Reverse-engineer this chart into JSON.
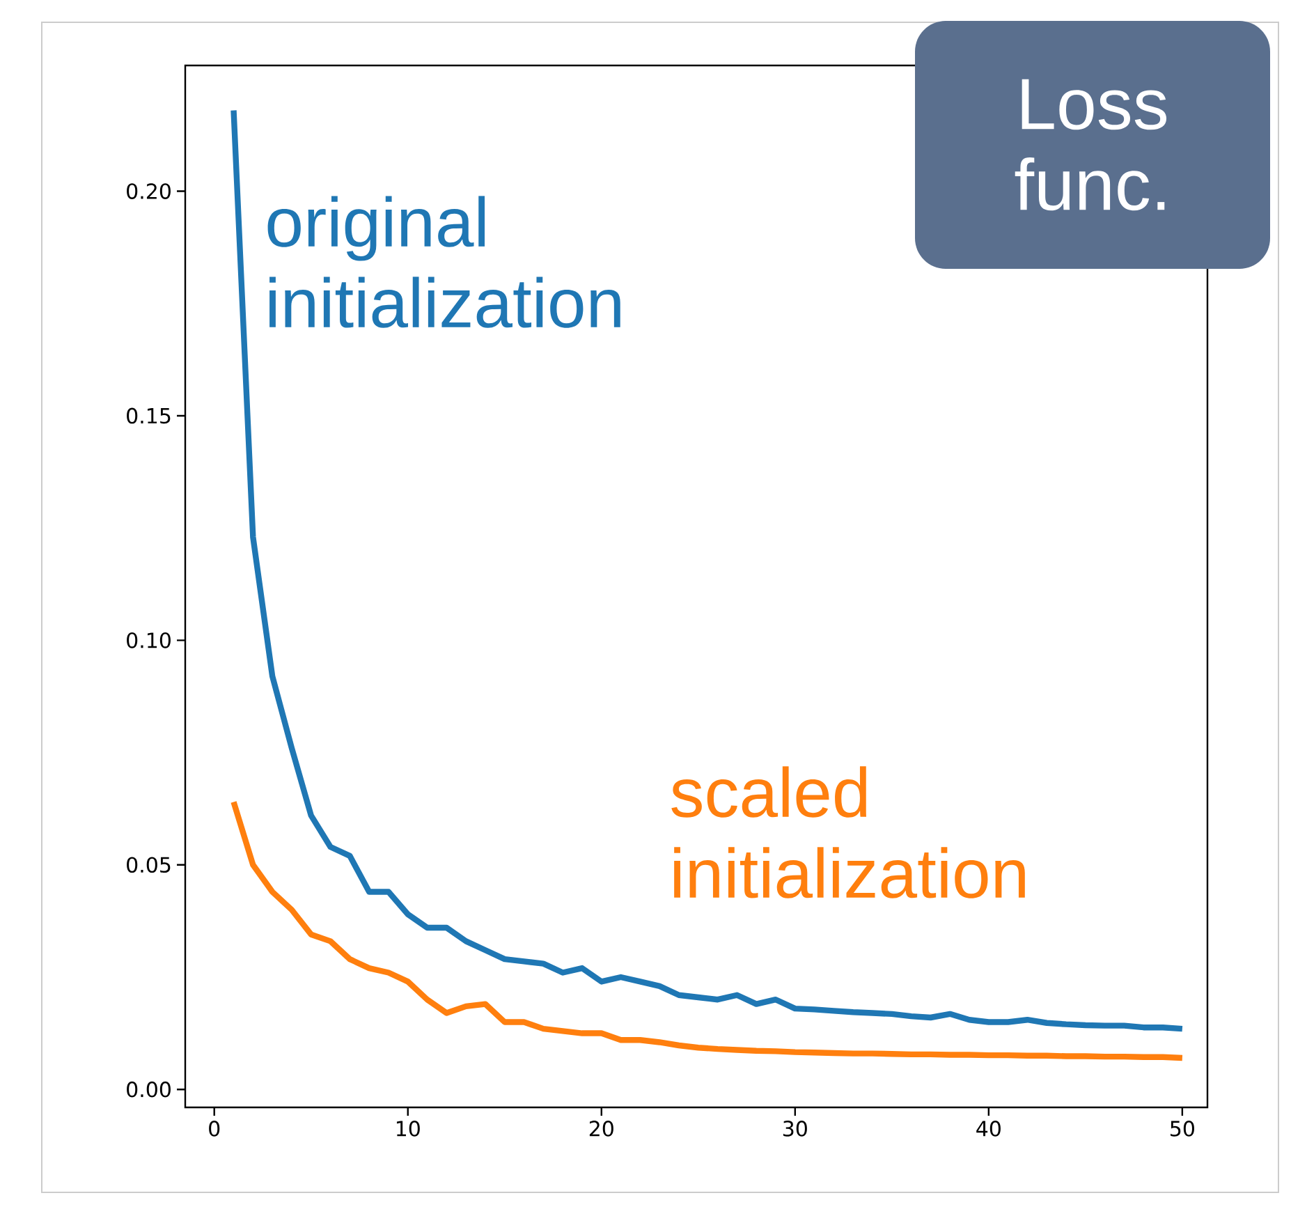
{
  "chart_data": {
    "type": "line",
    "title": "Loss func.",
    "x": [
      1,
      2,
      3,
      4,
      5,
      6,
      7,
      8,
      9,
      10,
      11,
      12,
      13,
      14,
      15,
      16,
      17,
      18,
      19,
      20,
      21,
      22,
      23,
      24,
      25,
      26,
      27,
      28,
      29,
      30,
      31,
      32,
      33,
      34,
      35,
      36,
      37,
      38,
      39,
      40,
      41,
      42,
      43,
      44,
      45,
      46,
      47,
      48,
      49,
      50
    ],
    "series": [
      {
        "name": "original initialization",
        "color": "#1f77b4",
        "values": [
          0.218,
          0.123,
          0.092,
          0.076,
          0.061,
          0.054,
          0.052,
          0.044,
          0.044,
          0.039,
          0.036,
          0.036,
          0.033,
          0.031,
          0.029,
          0.0285,
          0.028,
          0.026,
          0.027,
          0.024,
          0.025,
          0.024,
          0.023,
          0.021,
          0.0205,
          0.02,
          0.021,
          0.019,
          0.02,
          0.018,
          0.0178,
          0.0175,
          0.0172,
          0.017,
          0.0168,
          0.0163,
          0.016,
          0.0168,
          0.0155,
          0.015,
          0.015,
          0.0155,
          0.0148,
          0.0145,
          0.0143,
          0.0142,
          0.0142,
          0.0138,
          0.0138,
          0.0135
        ]
      },
      {
        "name": "scaled initialization",
        "color": "#ff7f0e",
        "values": [
          0.064,
          0.05,
          0.044,
          0.04,
          0.0345,
          0.033,
          0.029,
          0.027,
          0.026,
          0.024,
          0.02,
          0.017,
          0.0185,
          0.019,
          0.015,
          0.015,
          0.0135,
          0.013,
          0.0125,
          0.0125,
          0.011,
          0.011,
          0.0105,
          0.0098,
          0.0093,
          0.009,
          0.0088,
          0.0086,
          0.0085,
          0.0083,
          0.0082,
          0.0081,
          0.008,
          0.008,
          0.0079,
          0.0078,
          0.0078,
          0.0077,
          0.0077,
          0.0076,
          0.0076,
          0.0075,
          0.0075,
          0.0074,
          0.0074,
          0.0073,
          0.0073,
          0.0072,
          0.0072,
          0.007
        ]
      }
    ],
    "xlim": [
      -1.5,
      51.3
    ],
    "ylim": [
      -0.004,
      0.228
    ],
    "xticks": [
      0,
      10,
      20,
      30,
      40,
      50
    ],
    "yticks": [
      {
        "value": 0,
        "label": "0.00"
      },
      {
        "value": 0.05,
        "label": "0.05"
      },
      {
        "value": 0.1,
        "label": "0.10"
      },
      {
        "value": 0.15,
        "label": "0.15"
      },
      {
        "value": 0.2,
        "label": "0.20"
      }
    ],
    "grid": false,
    "legend": false
  }
}
